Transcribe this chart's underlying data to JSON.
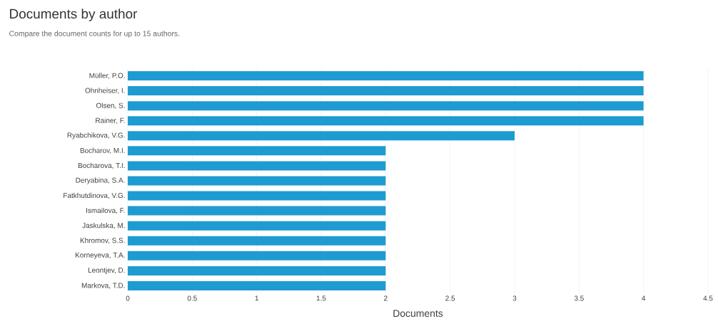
{
  "chart_data": {
    "type": "bar",
    "orientation": "horizontal",
    "title": "Documents by author",
    "subtitle": "Compare the document counts for up to 15 authors.",
    "xlabel": "Documents",
    "categories": [
      "Müller, P.O.",
      "Ohnheiser, I.",
      "Olsen, S.",
      "Rainer, F.",
      "Ryabchikova, V.G.",
      "Bocharov, M.I.",
      "Bocharova, T.I.",
      "Deryabina, S.A.",
      "Fatkhutdinova, V.G.",
      "Ismailova, F.",
      "Jaskulska, M.",
      "Khromov, S.S.",
      "Korneyeva, T.A.",
      "Leontjev, D.",
      "Markova, T.D."
    ],
    "values": [
      4,
      4,
      4,
      4,
      3,
      2,
      2,
      2,
      2,
      2,
      2,
      2,
      2,
      2,
      2
    ],
    "color": "#1e9bd0",
    "xlim": [
      0,
      4.5
    ],
    "xticks": [
      0,
      0.5,
      1,
      1.5,
      2,
      2.5,
      3,
      3.5,
      4,
      4.5
    ],
    "grid": "x"
  }
}
